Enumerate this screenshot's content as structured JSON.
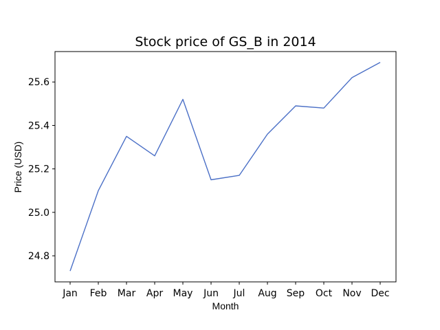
{
  "chart_data": {
    "type": "line",
    "title": "Stock price of GS_B in 2014",
    "xlabel": "Month",
    "ylabel": "Price (USD)",
    "categories": [
      "Jan",
      "Feb",
      "Mar",
      "Apr",
      "May",
      "Jun",
      "Jul",
      "Aug",
      "Sep",
      "Oct",
      "Nov",
      "Dec"
    ],
    "series": [
      {
        "values": [
          24.73,
          25.1,
          25.35,
          25.26,
          25.52,
          25.15,
          25.17,
          25.36,
          25.49,
          25.48,
          25.62,
          25.69
        ],
        "color": "#4a6fc6"
      }
    ],
    "ylim": [
      24.68,
      25.74
    ],
    "yticks": [
      "24.8",
      "25.0",
      "25.2",
      "25.4",
      "25.6"
    ],
    "grid": false,
    "legend": "none"
  }
}
